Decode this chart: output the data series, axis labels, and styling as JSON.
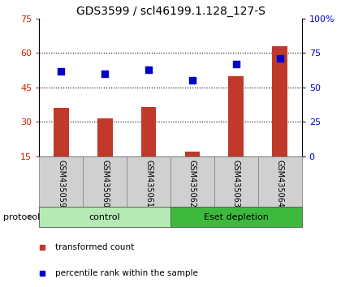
{
  "title": "GDS3599 / scl46199.1.128_127-S",
  "samples": [
    "GSM435059",
    "GSM435060",
    "GSM435061",
    "GSM435062",
    "GSM435063",
    "GSM435064"
  ],
  "transformed_count": [
    36,
    31.5,
    36.5,
    17,
    50,
    63
  ],
  "percentile_rank": [
    62,
    60,
    63,
    55,
    67,
    71
  ],
  "left_ylim": [
    15,
    75
  ],
  "left_yticks": [
    15,
    30,
    45,
    60,
    75
  ],
  "right_ylim": [
    0,
    100
  ],
  "right_yticks": [
    0,
    25,
    50,
    75,
    100
  ],
  "bar_color": "#c0392b",
  "square_color": "#0000cc",
  "groups": [
    {
      "label": "control",
      "start": 0,
      "end": 3,
      "color": "#b5eab5"
    },
    {
      "label": "Eset depletion",
      "start": 3,
      "end": 6,
      "color": "#3dba3d"
    }
  ],
  "protocol_label": "protocol",
  "legend_items": [
    {
      "label": "transformed count",
      "color": "#c0392b"
    },
    {
      "label": "percentile rank within the sample",
      "color": "#0000cc"
    }
  ],
  "tick_label_color_left": "#cc2200",
  "tick_label_color_right": "#0000cc",
  "bar_width": 0.35,
  "square_size": 35,
  "dotted_lines": [
    30,
    45,
    60
  ],
  "sample_box_color": "#d0d0d0",
  "sample_box_edge": "#888888",
  "title_fontsize": 10,
  "tick_fontsize": 8,
  "label_fontsize": 7,
  "group_fontsize": 8,
  "legend_fontsize": 7.5
}
